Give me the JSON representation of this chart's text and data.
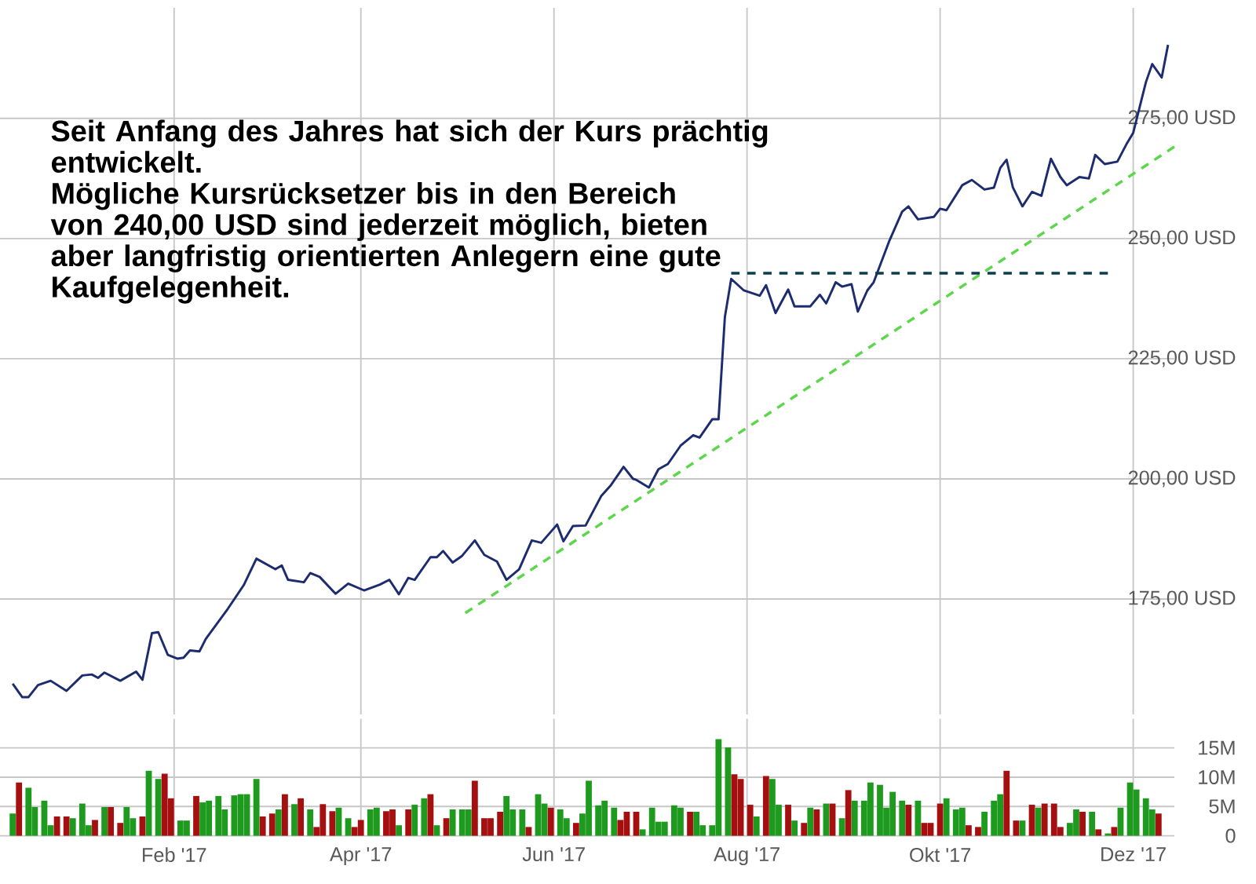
{
  "chart_data": [
    {
      "type": "line",
      "grid": true,
      "tick_labels": "y",
      "annotations": [
        "Seit Anfang des Jahres hat sich der Kurs prächtig entwickelt.",
        "Mögliche Kursrücksetzer bis in den Bereich von 240,00 USD sind jederzeit möglich, bieten aber langfristig orientierten Anlegern eine gute Kaufgelegenheit."
      ],
      "xlim": [
        "2016-12-08",
        "2017-12-14"
      ],
      "xticks": [
        {
          "value": "2017-02-01",
          "label": null
        },
        {
          "value": "2017-04-01",
          "label": null
        },
        {
          "value": "2017-06-01",
          "label": null
        },
        {
          "value": "2017-08-01",
          "label": null
        },
        {
          "value": "2017-10-01",
          "label": null
        },
        {
          "value": "2017-12-01",
          "label": null
        }
      ],
      "ylim": [
        151,
        298
      ],
      "yticks": [
        {
          "value": 175,
          "label": "175,00 USD"
        },
        {
          "value": 200,
          "label": "200,00 USD"
        },
        {
          "value": 225,
          "label": "225,00 USD"
        },
        {
          "value": 250,
          "label": "250,00 USD"
        },
        {
          "value": 275,
          "label": "275,00 USD"
        }
      ],
      "series": [
        {
          "color": "#1c2c6e",
          "x": [
            "2016-12-12",
            "2016-12-15",
            "2016-12-17",
            "2016-12-20",
            "2016-12-24",
            "2016-12-29",
            "2017-01-03",
            "2017-01-06",
            "2017-01-08",
            "2017-01-10",
            "2017-01-15",
            "2017-01-20",
            "2017-01-22",
            "2017-01-25",
            "2017-01-27",
            "2017-01-30",
            "2017-02-02",
            "2017-02-04",
            "2017-02-06",
            "2017-02-09",
            "2017-02-11",
            "2017-02-18",
            "2017-02-23",
            "2017-02-27",
            "2017-03-05",
            "2017-03-07",
            "2017-03-09",
            "2017-03-14",
            "2017-03-16",
            "2017-03-19",
            "2017-03-24",
            "2017-03-28",
            "2017-04-02",
            "2017-04-07",
            "2017-04-10",
            "2017-04-13",
            "2017-04-16",
            "2017-04-18",
            "2017-04-23",
            "2017-04-25",
            "2017-04-27",
            "2017-04-30",
            "2017-05-03",
            "2017-05-07",
            "2017-05-10",
            "2017-05-14",
            "2017-05-17",
            "2017-05-21",
            "2017-05-25",
            "2017-05-28",
            "2017-06-02",
            "2017-06-04",
            "2017-06-07",
            "2017-06-11",
            "2017-06-16",
            "2017-06-19",
            "2017-06-23",
            "2017-06-26",
            "2017-06-27",
            "2017-07-01",
            "2017-07-04",
            "2017-07-07",
            "2017-07-11",
            "2017-07-15",
            "2017-07-17",
            "2017-07-21",
            "2017-07-23",
            "2017-07-25",
            "2017-07-27",
            "2017-07-31",
            "2017-08-05",
            "2017-08-07",
            "2017-08-10",
            "2017-08-14",
            "2017-08-16",
            "2017-08-21",
            "2017-08-24",
            "2017-08-26",
            "2017-08-29",
            "2017-08-31",
            "2017-09-03",
            "2017-09-05",
            "2017-09-08",
            "2017-09-10",
            "2017-09-15",
            "2017-09-19",
            "2017-09-21",
            "2017-09-24",
            "2017-09-29",
            "2017-10-01",
            "2017-10-03",
            "2017-10-08",
            "2017-10-11",
            "2017-10-15",
            "2017-10-18",
            "2017-10-20",
            "2017-10-22",
            "2017-10-24",
            "2017-10-27",
            "2017-10-30",
            "2017-11-02",
            "2017-11-05",
            "2017-11-08",
            "2017-11-10",
            "2017-11-14",
            "2017-11-17",
            "2017-11-19",
            "2017-11-22",
            "2017-11-26",
            "2017-11-29",
            "2017-12-01",
            "2017-12-05",
            "2017-12-07",
            "2017-12-10",
            "2017-12-12"
          ],
          "values": [
            157.4,
            154.6,
            154.6,
            157.1,
            158.0,
            155.9,
            159.1,
            159.3,
            158.6,
            159.7,
            158.0,
            159.9,
            158.2,
            167.9,
            168.1,
            163.4,
            162.6,
            162.8,
            164.3,
            164.1,
            166.7,
            173.0,
            177.9,
            183.4,
            181.2,
            182.0,
            179.0,
            178.5,
            180.4,
            179.6,
            176.1,
            178.2,
            176.8,
            178.0,
            179.0,
            176.0,
            179.4,
            179.0,
            183.7,
            183.7,
            185.0,
            182.6,
            184.0,
            187.2,
            184.2,
            182.8,
            179.0,
            181.2,
            187.2,
            186.7,
            190.5,
            187.0,
            190.2,
            190.3,
            196.5,
            198.7,
            202.5,
            200.0,
            199.8,
            198.2,
            202.0,
            203.1,
            206.9,
            209.1,
            208.6,
            212.4,
            212.4,
            233.7,
            241.6,
            239.2,
            238.1,
            240.3,
            234.5,
            239.4,
            235.9,
            235.9,
            238.3,
            236.5,
            240.9,
            240.0,
            240.5,
            234.8,
            239.2,
            240.9,
            249.6,
            255.6,
            256.7,
            254.0,
            254.5,
            256.2,
            255.9,
            261.1,
            262.2,
            260.2,
            260.6,
            264.7,
            266.4,
            260.6,
            256.7,
            259.7,
            258.9,
            266.6,
            262.8,
            261.1,
            262.8,
            262.5,
            267.4,
            265.5,
            266.0,
            269.8,
            272.0,
            282.5,
            286.3,
            283.5,
            290.3
          ]
        },
        {
          "color": "#5cd64a",
          "line_style": "dashed",
          "x": [
            "2017-05-04",
            "2017-12-14"
          ],
          "values": [
            172.1,
            269.1
          ]
        },
        {
          "color": "#0b3d4f",
          "line_style": "dashed",
          "x": [
            "2017-07-27",
            "2017-11-23"
          ],
          "values": [
            242.8,
            242.8
          ]
        }
      ]
    },
    {
      "type": "bar",
      "grid": true,
      "xlim": [
        "2016-12-08",
        "2017-12-14"
      ],
      "xticks": [
        {
          "value": "2017-02-01",
          "label": "Feb '17"
        },
        {
          "value": "2017-04-01",
          "label": "Apr '17"
        },
        {
          "value": "2017-06-01",
          "label": "Jun '17"
        },
        {
          "value": "2017-08-01",
          "label": "Aug '17"
        },
        {
          "value": "2017-10-01",
          "label": "Okt '17"
        },
        {
          "value": "2017-12-01",
          "label": "Dez '17"
        }
      ],
      "ylim": [
        0,
        20
      ],
      "yticks": [
        0,
        {
          "value": 5,
          "label": "5M"
        },
        {
          "value": 10,
          "label": "10M"
        },
        {
          "value": 15,
          "label": "15M"
        }
      ],
      "x": [
        "2016-12-12",
        "2016-12-14",
        "2016-12-17",
        "2016-12-19",
        "2016-12-22",
        "2016-12-24",
        "2016-12-26",
        "2016-12-29",
        "2016-12-31",
        "2017-01-03",
        "2017-01-05",
        "2017-01-07",
        "2017-01-10",
        "2017-01-12",
        "2017-01-15",
        "2017-01-17",
        "2017-01-19",
        "2017-01-22",
        "2017-01-24",
        "2017-01-27",
        "2017-01-29",
        "2017-01-31",
        "2017-02-03",
        "2017-02-05",
        "2017-02-08",
        "2017-02-10",
        "2017-02-12",
        "2017-02-15",
        "2017-02-17",
        "2017-02-20",
        "2017-02-22",
        "2017-02-24",
        "2017-02-27",
        "2017-03-01",
        "2017-03-04",
        "2017-03-06",
        "2017-03-08",
        "2017-03-11",
        "2017-03-13",
        "2017-03-16",
        "2017-03-18",
        "2017-03-20",
        "2017-03-23",
        "2017-03-25",
        "2017-03-28",
        "2017-03-30",
        "2017-04-01",
        "2017-04-04",
        "2017-04-06",
        "2017-04-09",
        "2017-04-11",
        "2017-04-13",
        "2017-04-16",
        "2017-04-18",
        "2017-04-21",
        "2017-04-23",
        "2017-04-25",
        "2017-04-28",
        "2017-04-30",
        "2017-05-03",
        "2017-05-05",
        "2017-05-07",
        "2017-05-10",
        "2017-05-12",
        "2017-05-15",
        "2017-05-17",
        "2017-05-19",
        "2017-05-22",
        "2017-05-24",
        "2017-05-27",
        "2017-05-29",
        "2017-05-31",
        "2017-06-03",
        "2017-06-05",
        "2017-06-08",
        "2017-06-10",
        "2017-06-12",
        "2017-06-15",
        "2017-06-17",
        "2017-06-20",
        "2017-06-22",
        "2017-06-24",
        "2017-06-27",
        "2017-06-29",
        "2017-07-02",
        "2017-07-04",
        "2017-07-06",
        "2017-07-09",
        "2017-07-11",
        "2017-07-14",
        "2017-07-16",
        "2017-07-18",
        "2017-07-21",
        "2017-07-23",
        "2017-07-26",
        "2017-07-28",
        "2017-07-30",
        "2017-08-02",
        "2017-08-04",
        "2017-08-07",
        "2017-08-09",
        "2017-08-11",
        "2017-08-14",
        "2017-08-16",
        "2017-08-19",
        "2017-08-21",
        "2017-08-23",
        "2017-08-26",
        "2017-08-28",
        "2017-08-31",
        "2017-09-02",
        "2017-09-04",
        "2017-09-07",
        "2017-09-09",
        "2017-09-12",
        "2017-09-14",
        "2017-09-16",
        "2017-09-19",
        "2017-09-21",
        "2017-09-24",
        "2017-09-26",
        "2017-09-28",
        "2017-10-01",
        "2017-10-03",
        "2017-10-06",
        "2017-10-08",
        "2017-10-10",
        "2017-10-13",
        "2017-10-15",
        "2017-10-18",
        "2017-10-20",
        "2017-10-22",
        "2017-10-25",
        "2017-10-27",
        "2017-10-30",
        "2017-11-01",
        "2017-11-03",
        "2017-11-06",
        "2017-11-08",
        "2017-11-11",
        "2017-11-13",
        "2017-11-15",
        "2017-11-18",
        "2017-11-20",
        "2017-11-23",
        "2017-11-25",
        "2017-11-27",
        "2017-11-30",
        "2017-12-02",
        "2017-12-05",
        "2017-12-07",
        "2017-12-09"
      ],
      "values": [
        3.8,
        9.1,
        8.2,
        4.9,
        6.0,
        1.8,
        3.3,
        3.3,
        3.0,
        5.5,
        1.8,
        2.7,
        4.9,
        4.9,
        2.2,
        4.9,
        3.0,
        3.3,
        11.1,
        9.7,
        10.6,
        6.4,
        2.6,
        2.6,
        6.8,
        5.7,
        6.0,
        6.8,
        4.5,
        6.9,
        7.1,
        7.1,
        9.7,
        3.3,
        3.8,
        4.5,
        7.1,
        5.4,
        6.4,
        4.5,
        1.5,
        5.4,
        4.2,
        4.8,
        3.0,
        1.5,
        2.7,
        4.5,
        4.8,
        4.2,
        4.5,
        1.8,
        4.5,
        5.3,
        6.4,
        7.1,
        1.8,
        3.0,
        4.5,
        4.5,
        4.5,
        9.4,
        3.0,
        3.0,
        4.1,
        6.8,
        4.5,
        4.5,
        1.5,
        7.1,
        5.5,
        4.8,
        4.5,
        3.0,
        2.2,
        3.8,
        9.4,
        5.2,
        6.0,
        4.8,
        2.7,
        4.1,
        4.1,
        1.1,
        4.8,
        2.4,
        2.4,
        5.2,
        4.8,
        4.1,
        4.1,
        1.8,
        1.8,
        16.5,
        15.1,
        10.5,
        9.7,
        5.3,
        3.3,
        10.2,
        9.7,
        5.3,
        5.3,
        2.6,
        2.2,
        4.8,
        4.5,
        5.5,
        5.5,
        3.0,
        7.8,
        6.0,
        6.0,
        9.1,
        8.7,
        4.8,
        7.5,
        6.0,
        5.3,
        6.0,
        2.2,
        2.2,
        5.5,
        6.4,
        4.5,
        4.8,
        1.8,
        1.5,
        4.1,
        6.0,
        7.1,
        11.1,
        2.6,
        2.6,
        5.3,
        4.8,
        5.5,
        5.5,
        1.5,
        2.2,
        4.5,
        4.1,
        4.1,
        1.1,
        0.4,
        1.5,
        4.8,
        9.1,
        7.9,
        6.4,
        4.5,
        3.8
      ],
      "colors": [
        "#1e9b1e",
        "#a50f0f",
        "#1e9b1e",
        "#1e9b1e",
        "#1e9b1e",
        "#1e9b1e",
        "#a50f0f",
        "#a50f0f",
        "#1e9b1e",
        "#1e9b1e",
        "#1e9b1e",
        "#a50f0f",
        "#1e9b1e",
        "#a50f0f",
        "#a50f0f",
        "#1e9b1e",
        "#1e9b1e",
        "#a50f0f",
        "#1e9b1e",
        "#1e9b1e",
        "#a50f0f",
        "#a50f0f",
        "#1e9b1e",
        "#1e9b1e",
        "#a50f0f",
        "#1e9b1e",
        "#1e9b1e",
        "#1e9b1e",
        "#1e9b1e",
        "#1e9b1e",
        "#1e9b1e",
        "#1e9b1e",
        "#1e9b1e",
        "#a50f0f",
        "#a50f0f",
        "#1e9b1e",
        "#a50f0f",
        "#1e9b1e",
        "#a50f0f",
        "#1e9b1e",
        "#a50f0f",
        "#a50f0f",
        "#a50f0f",
        "#1e9b1e",
        "#1e9b1e",
        "#a50f0f",
        "#a50f0f",
        "#1e9b1e",
        "#1e9b1e",
        "#a50f0f",
        "#a50f0f",
        "#1e9b1e",
        "#a50f0f",
        "#1e9b1e",
        "#1e9b1e",
        "#a50f0f",
        "#1e9b1e",
        "#a50f0f",
        "#1e9b1e",
        "#1e9b1e",
        "#1e9b1e",
        "#a50f0f",
        "#a50f0f",
        "#a50f0f",
        "#a50f0f",
        "#1e9b1e",
        "#1e9b1e",
        "#1e9b1e",
        "#a50f0f",
        "#1e9b1e",
        "#1e9b1e",
        "#a50f0f",
        "#1e9b1e",
        "#1e9b1e",
        "#a50f0f",
        "#1e9b1e",
        "#1e9b1e",
        "#1e9b1e",
        "#1e9b1e",
        "#1e9b1e",
        "#a50f0f",
        "#a50f0f",
        "#a50f0f",
        "#1e9b1e",
        "#1e9b1e",
        "#1e9b1e",
        "#1e9b1e",
        "#1e9b1e",
        "#1e9b1e",
        "#a50f0f",
        "#1e9b1e",
        "#1e9b1e",
        "#1e9b1e",
        "#1e9b1e",
        "#1e9b1e",
        "#a50f0f",
        "#a50f0f",
        "#a50f0f",
        "#1e9b1e",
        "#a50f0f",
        "#1e9b1e",
        "#1e9b1e",
        "#a50f0f",
        "#1e9b1e",
        "#a50f0f",
        "#1e9b1e",
        "#a50f0f",
        "#1e9b1e",
        "#a50f0f",
        "#1e9b1e",
        "#a50f0f",
        "#1e9b1e",
        "#1e9b1e",
        "#1e9b1e",
        "#1e9b1e",
        "#1e9b1e",
        "#1e9b1e",
        "#1e9b1e",
        "#a50f0f",
        "#1e9b1e",
        "#a50f0f",
        "#a50f0f",
        "#a50f0f",
        "#1e9b1e",
        "#1e9b1e",
        "#1e9b1e",
        "#a50f0f",
        "#a50f0f",
        "#1e9b1e",
        "#1e9b1e",
        "#1e9b1e",
        "#a50f0f",
        "#a50f0f",
        "#1e9b1e",
        "#a50f0f",
        "#1e9b1e",
        "#a50f0f",
        "#a50f0f",
        "#a50f0f",
        "#1e9b1e",
        "#1e9b1e",
        "#a50f0f",
        "#1e9b1e",
        "#a50f0f",
        "#1e9b1e",
        "#a50f0f",
        "#1e9b1e",
        "#1e9b1e",
        "#1e9b1e",
        "#1e9b1e",
        "#1e9b1e",
        "#a50f0f"
      ]
    }
  ]
}
